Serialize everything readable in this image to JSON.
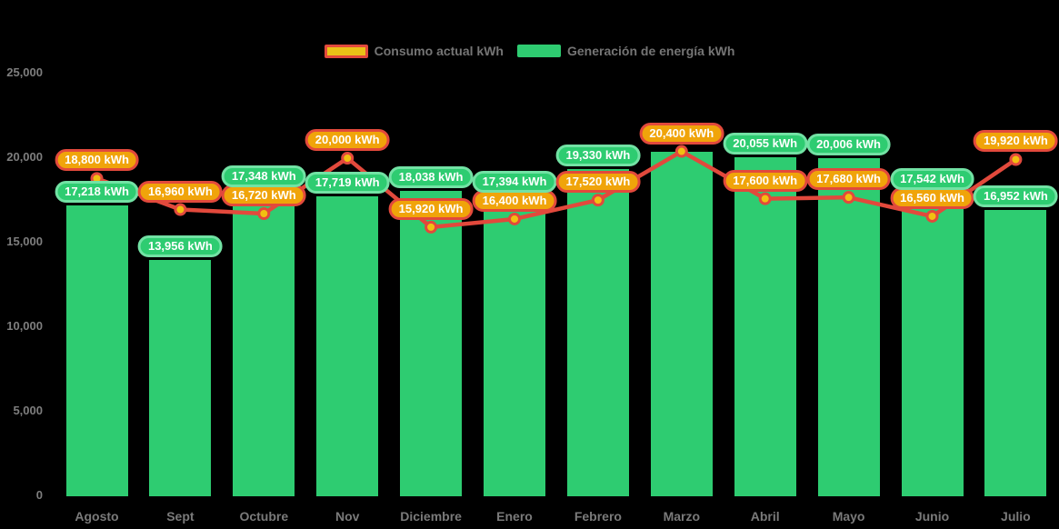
{
  "legend": {
    "items": [
      {
        "id": "consumption",
        "label": "Consumo actual kWh"
      },
      {
        "id": "generation",
        "label": "Generación de energía kWh"
      }
    ]
  },
  "y_axis": {
    "tick_labels": [
      "0",
      "5,000",
      "10,000",
      "15,000",
      "20,000",
      "25,000"
    ],
    "tick_values": [
      0,
      5000,
      10000,
      15000,
      20000,
      25000
    ]
  },
  "chart_data": {
    "type": "bar+line",
    "title": "",
    "categories": [
      "Agosto",
      "Sept",
      "Octubre",
      "Nov",
      "Diciembre",
      "Enero",
      "Febrero",
      "Marzo",
      "Abril",
      "Mayo",
      "Junio",
      "Julio"
    ],
    "series": [
      {
        "name": "Generación de energía kWh",
        "type": "bar",
        "color": "#2ecc71",
        "values": [
          17218,
          13956,
          17348,
          17719,
          18038,
          17394,
          19330,
          20400,
          20055,
          20006,
          17542,
          16952
        ],
        "data_labels": [
          "17,218 kWh",
          "13,956 kWh",
          "17,348 kWh",
          "17,719 kWh",
          "18,038 kWh",
          "17,394 kWh",
          "19,330 kWh",
          null,
          "20,055 kWh",
          "20,006 kWh",
          "17,542 kWh",
          "16,952 kWh"
        ]
      },
      {
        "name": "Consumo actual kWh",
        "type": "line",
        "color": "#e2493c",
        "values": [
          18800,
          16960,
          16720,
          20000,
          15920,
          16400,
          17520,
          20400,
          17600,
          17680,
          16560,
          19920
        ],
        "data_labels": [
          "18,800 kWh",
          "16,960 kWh",
          "16,720 kWh",
          "20,000 kWh",
          "15,920 kWh",
          "16,400 kWh",
          "17,520 kWh",
          "20,400 kWh",
          "17,600 kWh",
          "17,680 kWh",
          "16,560 kWh",
          "19,920 kWh"
        ]
      }
    ],
    "ylim": [
      0,
      25000
    ],
    "grid": false,
    "legend_position": "top",
    "units": "kWh"
  },
  "colors": {
    "background": "#000000",
    "bar": "#2ecc71",
    "generation_label_bg": "#2ecc71",
    "generation_label_border": "#72e2a4",
    "line": "#e2493c",
    "marker_fill": "#f2c011",
    "consumption_label_bg": "#f0a40a",
    "consumption_label_border": "#e2493c",
    "axis_text": "#7a7a7a",
    "label_text": "#ffffff"
  }
}
